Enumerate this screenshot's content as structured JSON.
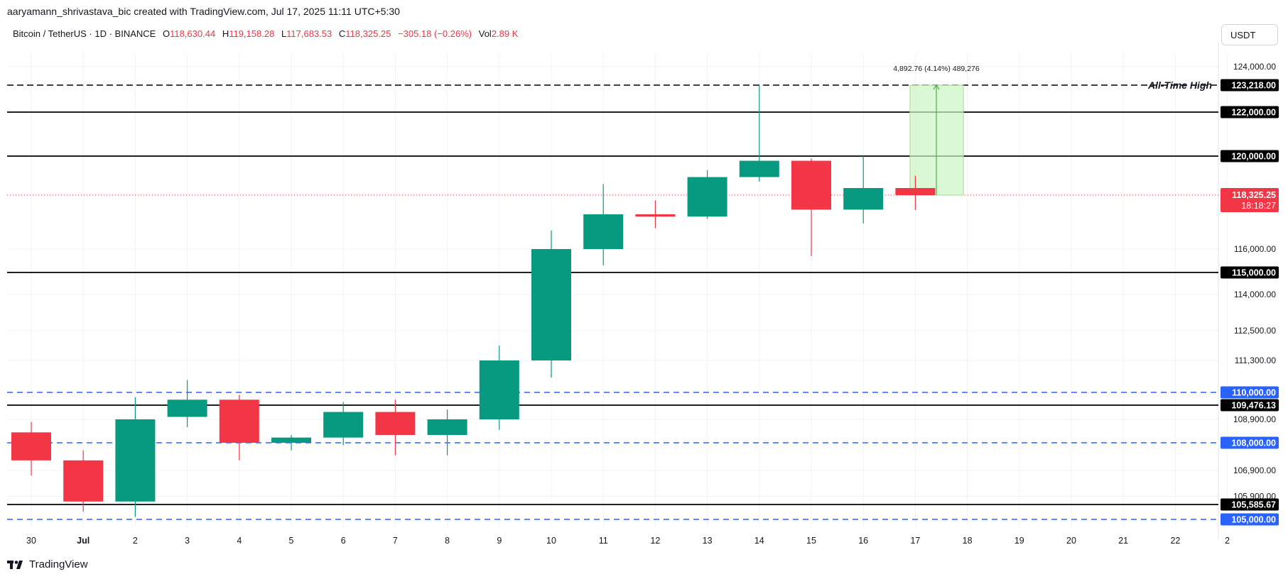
{
  "caption": "aaryamann_shrivastava_bic created with TradingView.com, Jul 17, 2025 11:11 UTC+5:30",
  "header": {
    "symbol": "Bitcoin / TetherUS · 1D · BINANCE",
    "open_label": "O",
    "open": "118,630.44",
    "high_label": "H",
    "high": "119,158.28",
    "low_label": "L",
    "low": "117,683.53",
    "close_label": "C",
    "close": "118,325.25",
    "change": "−305.18 (−0.26%)",
    "vol_label": "Vol",
    "vol": "2.89 K"
  },
  "currency_button": "USDT",
  "brand": "TradingView",
  "colors": {
    "up": "#089981",
    "down": "#f23645",
    "blue": "#2962ff",
    "level": "#000000",
    "measure_fill": "#ccf5c2",
    "measure_line": "#4caf50",
    "price_tag": "#f23645"
  },
  "chart_data": {
    "type": "candlestick",
    "x_ticks": [
      "30",
      "Jul",
      "2",
      "3",
      "4",
      "5",
      "6",
      "7",
      "8",
      "9",
      "10",
      "11",
      "12",
      "13",
      "14",
      "15",
      "16",
      "17",
      "18",
      "19",
      "20",
      "21",
      "22",
      "2"
    ],
    "y_ticks": [
      124000,
      116000,
      114000,
      112500,
      111300,
      108900,
      106900,
      105900
    ],
    "y_tick_labels": [
      "124,000.00",
      "116,000.00",
      "114,000.00",
      "112,500.00",
      "111,300.00",
      "108,900.00",
      "106,900.00",
      "105,900.00"
    ],
    "candles": [
      {
        "date": "Jun 30",
        "open": 108400,
        "high": 108800,
        "low": 106700,
        "close": 107300
      },
      {
        "date": "Jul 1",
        "open": 107300,
        "high": 107700,
        "low": 105300,
        "close": 105700
      },
      {
        "date": "Jul 2",
        "open": 105700,
        "high": 109800,
        "low": 105100,
        "close": 108900
      },
      {
        "date": "Jul 3",
        "open": 109000,
        "high": 110500,
        "low": 108600,
        "close": 109700
      },
      {
        "date": "Jul 4",
        "open": 109700,
        "high": 109900,
        "low": 107300,
        "close": 108000
      },
      {
        "date": "Jul 5",
        "open": 108000,
        "high": 108300,
        "low": 107700,
        "close": 108200
      },
      {
        "date": "Jul 6",
        "open": 108200,
        "high": 109600,
        "low": 107900,
        "close": 109200
      },
      {
        "date": "Jul 7",
        "open": 109200,
        "high": 109700,
        "low": 107500,
        "close": 108300
      },
      {
        "date": "Jul 8",
        "open": 108300,
        "high": 109300,
        "low": 107500,
        "close": 108900
      },
      {
        "date": "Jul 9",
        "open": 108900,
        "high": 111900,
        "low": 108500,
        "close": 111300
      },
      {
        "date": "Jul 10",
        "open": 111300,
        "high": 116800,
        "low": 110600,
        "close": 116000
      },
      {
        "date": "Jul 11",
        "open": 116000,
        "high": 118800,
        "low": 115300,
        "close": 117500
      },
      {
        "date": "Jul 12",
        "open": 117500,
        "high": 118100,
        "low": 116900,
        "close": 117400
      },
      {
        "date": "Jul 13",
        "open": 117400,
        "high": 119400,
        "low": 117300,
        "close": 119100
      },
      {
        "date": "Jul 14",
        "open": 119100,
        "high": 123218,
        "low": 118900,
        "close": 119800
      },
      {
        "date": "Jul 15",
        "open": 119800,
        "high": 119900,
        "low": 115700,
        "close": 117700
      },
      {
        "date": "Jul 16",
        "open": 117700,
        "high": 120000,
        "low": 117100,
        "close": 118630
      },
      {
        "date": "Jul 17",
        "open": 118630,
        "high": 119158,
        "low": 117683,
        "close": 118325
      }
    ],
    "horizontal_levels": [
      {
        "value": 123218,
        "label": "123,218.00",
        "style": "dashed",
        "color": "#000000",
        "note": "All-Time High"
      },
      {
        "value": 122000,
        "label": "122,000.00",
        "style": "solid",
        "color": "#000000"
      },
      {
        "value": 120000,
        "label": "120,000.00",
        "style": "solid",
        "color": "#000000"
      },
      {
        "value": 115000,
        "label": "115,000.00",
        "style": "solid",
        "color": "#000000"
      },
      {
        "value": 110000,
        "label": "110,000.00",
        "style": "dashed",
        "color": "#2962ff"
      },
      {
        "value": 109476.13,
        "label": "109,476.13",
        "style": "solid",
        "color": "#000000"
      },
      {
        "value": 108000,
        "label": "108,000.00",
        "style": "dashed",
        "color": "#2962ff"
      },
      {
        "value": 105585.67,
        "label": "105,585.67",
        "style": "solid",
        "color": "#000000"
      },
      {
        "value": 105000,
        "label": "105,000.00",
        "style": "dashed",
        "color": "#2962ff"
      }
    ],
    "last_price": {
      "value": 118325.25,
      "label": "118,325.25",
      "countdown": "18:18:27"
    },
    "measure": {
      "from": 118325.25,
      "to": 123218,
      "label": "4,892.76 (4.14%) 489,276"
    }
  }
}
